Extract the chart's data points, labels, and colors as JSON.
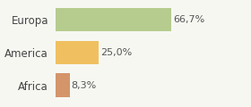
{
  "categories": [
    "Europa",
    "America",
    "Africa"
  ],
  "values": [
    66.7,
    25.0,
    8.3
  ],
  "labels": [
    "66,7%",
    "25,0%",
    "8,3%"
  ],
  "bar_colors": [
    "#b5cc8e",
    "#f0c060",
    "#d4956a"
  ],
  "background_color": "#f7f7f2",
  "label_fontsize": 8,
  "category_fontsize": 8.5,
  "bar_height": 0.72,
  "xlim_max": 95
}
